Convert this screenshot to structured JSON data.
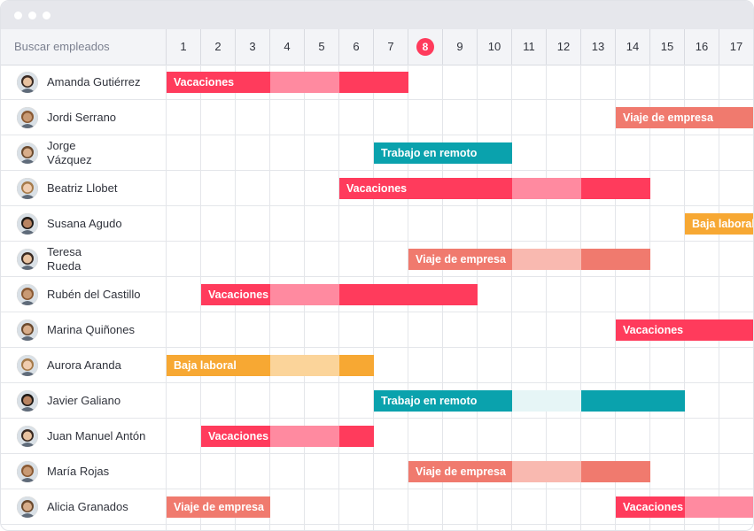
{
  "search_placeholder": "Buscar empleados",
  "days": [
    "1",
    "2",
    "3",
    "4",
    "5",
    "6",
    "7",
    "8",
    "9",
    "10",
    "11",
    "12",
    "13",
    "14",
    "15",
    "16",
    "17"
  ],
  "today": "8",
  "colors": {
    "vacaciones": "#ff3b5c",
    "vacaciones_light": "#ff8aa0",
    "viaje": "#f07a6e",
    "viaje_light": "#f9b9b0",
    "remoto": "#0aa2ad",
    "remoto_light": "#e6f5f6",
    "baja": "#f7a833",
    "baja_light": "#fbd49a"
  },
  "employees": [
    {
      "name": "Amanda Gutiérrez",
      "events": [
        {
          "label": "Vacaciones",
          "type": "vacaciones",
          "start": 1,
          "end": 7,
          "light": [
            4,
            5
          ]
        }
      ]
    },
    {
      "name": "Jordi Serrano",
      "events": [
        {
          "label": "Viaje de empresa",
          "type": "viaje",
          "start": 14,
          "end": 17,
          "light": []
        }
      ]
    },
    {
      "name": "Jorge Vázquez",
      "events": [
        {
          "label": "Trabajo en remoto",
          "type": "remoto",
          "start": 7,
          "end": 10,
          "light": []
        }
      ]
    },
    {
      "name": "Beatriz Llobet",
      "events": [
        {
          "label": "Vacaciones",
          "type": "vacaciones",
          "start": 6,
          "end": 14,
          "light": [
            11,
            12
          ]
        }
      ]
    },
    {
      "name": "Susana Agudo",
      "events": [
        {
          "label": "Baja laboral",
          "type": "baja",
          "start": 16,
          "end": 17,
          "light": []
        }
      ]
    },
    {
      "name": "Teresa Rueda",
      "events": [
        {
          "label": "Viaje de empresa",
          "type": "viaje",
          "start": 8,
          "end": 14,
          "light": [
            11,
            12
          ]
        }
      ]
    },
    {
      "name": "Rubén del Castillo",
      "events": [
        {
          "label": "Vacaciones",
          "type": "vacaciones",
          "start": 2,
          "end": 9,
          "light": [
            4,
            5
          ]
        }
      ]
    },
    {
      "name": "Marina Quiñones",
      "events": [
        {
          "label": "Vacaciones",
          "type": "vacaciones",
          "start": 14,
          "end": 17,
          "light": []
        }
      ]
    },
    {
      "name": "Aurora Aranda",
      "events": [
        {
          "label": "Baja laboral",
          "type": "baja",
          "start": 1,
          "end": 6,
          "light": [
            4,
            5
          ]
        }
      ]
    },
    {
      "name": "Javier Galiano",
      "events": [
        {
          "label": "Trabajo en remoto",
          "type": "remoto",
          "start": 7,
          "end": 15,
          "light": [
            11,
            12
          ]
        }
      ]
    },
    {
      "name": "Juan Manuel Antón",
      "events": [
        {
          "label": "Vacaciones",
          "type": "vacaciones",
          "start": 2,
          "end": 6,
          "light": [
            4,
            5
          ]
        }
      ]
    },
    {
      "name": "María Rojas",
      "events": [
        {
          "label": "Viaje de empresa",
          "type": "viaje",
          "start": 8,
          "end": 14,
          "light": [
            11,
            12
          ]
        }
      ]
    },
    {
      "name": "Alicia Granados",
      "events": [
        {
          "label": "Viaje de empresa",
          "type": "viaje",
          "start": 1,
          "end": 3,
          "light": []
        },
        {
          "label": "Vacaciones",
          "type": "vacaciones",
          "start": 14,
          "end": 17,
          "light": [
            16,
            17
          ]
        }
      ]
    }
  ]
}
